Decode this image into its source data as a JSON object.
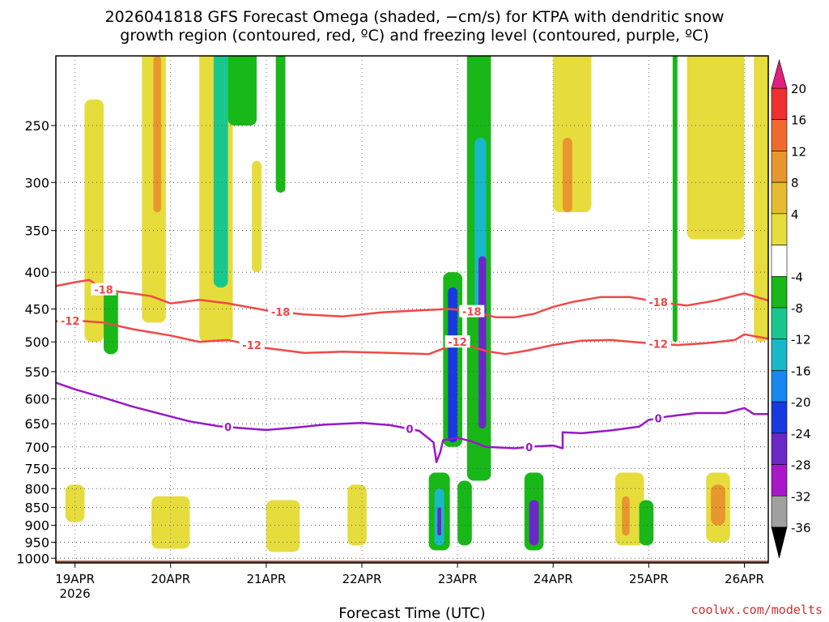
{
  "header": {
    "title_line1": "2026041818 GFS Forecast Omega (shaded, −cm/s) for KTPA with dendritic snow",
    "title_line2": "growth region (contoured, red, ºC) and freezing level (contoured, purple, ºC)"
  },
  "credit": "coolwx.com/modelts",
  "chart_data": {
    "type": "heatmap",
    "title": "2026041818 GFS Forecast Omega (shaded, −cm/s) for KTPA with dendritic snow growth region (contoured, red, ºC) and freezing level (contoured, purple, ºC)",
    "xlabel": "Forecast Time (UTC)",
    "ylabel": "",
    "x_range_days_since_19APR_00Z": [
      -0.2,
      7.25
    ],
    "y_range_hpa": [
      1015,
      200
    ],
    "x_ticks": [
      {
        "day": 0,
        "label": "19APR"
      },
      {
        "day": 1,
        "label": "20APR"
      },
      {
        "day": 2,
        "label": "21APR"
      },
      {
        "day": 3,
        "label": "22APR"
      },
      {
        "day": 4,
        "label": "23APR"
      },
      {
        "day": 5,
        "label": "24APR"
      },
      {
        "day": 6,
        "label": "25APR"
      },
      {
        "day": 7,
        "label": "26APR"
      }
    ],
    "x_year_label": "2026",
    "y_ticks": [
      250,
      300,
      350,
      400,
      450,
      500,
      550,
      600,
      650,
      700,
      750,
      800,
      850,
      900,
      950,
      1000
    ],
    "colorbar": {
      "labels": [
        "20",
        "16",
        "12",
        "8",
        "4",
        "-4",
        "-8",
        "-12",
        "-16",
        "-20",
        "-24",
        "-28",
        "-32",
        "-36"
      ],
      "colors": [
        "#f03030",
        "#f06a30",
        "#e8962e",
        "#e6bb30",
        "#e6dc3c",
        "#ffffff",
        "#18b818",
        "#18c88c",
        "#18b8c8",
        "#1888f0",
        "#1838e0",
        "#6a28c8",
        "#a818c8",
        "#a0a0a0"
      ],
      "top_arrow_color": "#e0207a",
      "bottom_arrow_color": "#000000"
    },
    "contours": [
      {
        "name": "-18",
        "color": "#f04848",
        "label": "-18",
        "points": [
          [
            -0.2,
            418
          ],
          [
            0,
            413
          ],
          [
            0.15,
            410
          ],
          [
            0.3,
            423
          ],
          [
            0.6,
            428
          ],
          [
            0.8,
            432
          ],
          [
            1.0,
            442
          ],
          [
            1.3,
            437
          ],
          [
            1.6,
            442
          ],
          [
            2.0,
            452
          ],
          [
            2.4,
            458
          ],
          [
            2.8,
            461
          ],
          [
            3.2,
            455
          ],
          [
            3.6,
            452
          ],
          [
            3.9,
            450
          ],
          [
            4.1,
            452
          ],
          [
            4.4,
            462
          ],
          [
            4.6,
            462
          ],
          [
            4.8,
            457
          ],
          [
            5.0,
            447
          ],
          [
            5.2,
            440
          ],
          [
            5.5,
            433
          ],
          [
            5.8,
            433
          ],
          [
            6.1,
            440
          ],
          [
            6.4,
            445
          ],
          [
            6.7,
            438
          ],
          [
            7.0,
            428
          ],
          [
            7.25,
            438
          ]
        ],
        "label_days": [
          0.3,
          2.15,
          4.15,
          6.1
        ]
      },
      {
        "name": "-12",
        "color": "#f04848",
        "label": "-12",
        "points": [
          [
            -0.2,
            468
          ],
          [
            0,
            467
          ],
          [
            0.3,
            470
          ],
          [
            0.6,
            480
          ],
          [
            1.0,
            490
          ],
          [
            1.3,
            500
          ],
          [
            1.6,
            497
          ],
          [
            2.0,
            510
          ],
          [
            2.4,
            518
          ],
          [
            2.8,
            516
          ],
          [
            3.3,
            518
          ],
          [
            3.7,
            520
          ],
          [
            3.9,
            508
          ],
          [
            4.0,
            500
          ],
          [
            4.1,
            505
          ],
          [
            4.3,
            515
          ],
          [
            4.5,
            520
          ],
          [
            4.7,
            515
          ],
          [
            5.0,
            505
          ],
          [
            5.3,
            498
          ],
          [
            5.6,
            497
          ],
          [
            6.0,
            502
          ],
          [
            6.3,
            505
          ],
          [
            6.6,
            502
          ],
          [
            6.9,
            497
          ],
          [
            7.0,
            488
          ],
          [
            7.25,
            495
          ]
        ],
        "label_days": [
          -0.05,
          1.85,
          4.0,
          6.1
        ]
      },
      {
        "name": "0",
        "color": "#9818c8",
        "label": "0",
        "points": [
          [
            -0.2,
            570
          ],
          [
            0,
            582
          ],
          [
            0.3,
            598
          ],
          [
            0.6,
            615
          ],
          [
            0.9,
            630
          ],
          [
            1.2,
            645
          ],
          [
            1.5,
            655
          ],
          [
            1.8,
            660
          ],
          [
            2.0,
            663
          ],
          [
            2.3,
            658
          ],
          [
            2.6,
            652
          ],
          [
            3.0,
            648
          ],
          [
            3.3,
            653
          ],
          [
            3.6,
            665
          ],
          [
            3.75,
            690
          ],
          [
            3.78,
            735
          ],
          [
            3.82,
            712
          ],
          [
            3.85,
            685
          ],
          [
            4.0,
            680
          ],
          [
            4.15,
            688
          ],
          [
            4.3,
            700
          ],
          [
            4.6,
            703
          ],
          [
            4.8,
            699
          ],
          [
            5.0,
            697
          ],
          [
            5.1,
            703
          ],
          [
            5.1,
            668
          ],
          [
            5.3,
            670
          ],
          [
            5.6,
            664
          ],
          [
            5.9,
            656
          ],
          [
            6.0,
            642
          ],
          [
            6.2,
            635
          ],
          [
            6.5,
            628
          ],
          [
            6.8,
            628
          ],
          [
            7.0,
            618
          ],
          [
            7.1,
            630
          ],
          [
            7.25,
            630
          ]
        ],
        "label_days": [
          1.6,
          3.5,
          4.75,
          6.1
        ]
      }
    ],
    "omega_shading_blocks": [
      {
        "day": [
          0.1,
          0.3
        ],
        "p": [
          230,
          500
        ],
        "value": 4
      },
      {
        "day": [
          0.3,
          0.45
        ],
        "p": [
          420,
          520
        ],
        "value": -8
      },
      {
        "day": [
          0.7,
          0.95
        ],
        "p": [
          180,
          470
        ],
        "value": 4
      },
      {
        "day": [
          0.82,
          0.9
        ],
        "p": [
          200,
          330
        ],
        "value": 12
      },
      {
        "day": [
          1.3,
          1.65
        ],
        "p": [
          190,
          500
        ],
        "value": 4
      },
      {
        "day": [
          1.45,
          1.6
        ],
        "p": [
          190,
          420
        ],
        "value": -12
      },
      {
        "day": [
          1.6,
          1.9
        ],
        "p": [
          190,
          250
        ],
        "value": -8
      },
      {
        "day": [
          2.1,
          2.2
        ],
        "p": [
          190,
          310
        ],
        "value": -8
      },
      {
        "day": [
          4.1,
          4.35
        ],
        "p": [
          190,
          780
        ],
        "value": -8
      },
      {
        "day": [
          4.18,
          4.3
        ],
        "p": [
          260,
          460
        ],
        "value": -16
      },
      {
        "day": [
          3.85,
          4.05
        ],
        "p": [
          400,
          700
        ],
        "value": -8
      },
      {
        "day": [
          3.9,
          4.0
        ],
        "p": [
          420,
          690
        ],
        "value": -24
      },
      {
        "day": [
          4.22,
          4.3
        ],
        "p": [
          380,
          660
        ],
        "value": -28
      },
      {
        "day": [
          5.0,
          5.4
        ],
        "p": [
          190,
          330
        ],
        "value": 4
      },
      {
        "day": [
          5.1,
          5.2
        ],
        "p": [
          260,
          330
        ],
        "value": 12
      },
      {
        "day": [
          6.4,
          7.0
        ],
        "p": [
          190,
          360
        ],
        "value": 4
      },
      {
        "day": [
          7.1,
          7.25
        ],
        "p": [
          190,
          500
        ],
        "value": 4
      },
      {
        "day": [
          0.8,
          1.2
        ],
        "p": [
          820,
          970
        ],
        "value": 4
      },
      {
        "day": [
          2.0,
          2.35
        ],
        "p": [
          830,
          980
        ],
        "value": 4
      },
      {
        "day": [
          2.85,
          3.05
        ],
        "p": [
          790,
          960
        ],
        "value": 4
      },
      {
        "day": [
          3.7,
          3.92
        ],
        "p": [
          760,
          975
        ],
        "value": -8
      },
      {
        "day": [
          3.76,
          3.86
        ],
        "p": [
          800,
          960
        ],
        "value": -16
      },
      {
        "day": [
          3.79,
          3.83
        ],
        "p": [
          850,
          930
        ],
        "value": -28
      },
      {
        "day": [
          4.0,
          4.15
        ],
        "p": [
          780,
          960
        ],
        "value": -8
      },
      {
        "day": [
          4.7,
          4.9
        ],
        "p": [
          760,
          975
        ],
        "value": -8
      },
      {
        "day": [
          4.75,
          4.85
        ],
        "p": [
          830,
          960
        ],
        "value": -28
      },
      {
        "day": [
          5.65,
          5.95
        ],
        "p": [
          760,
          960
        ],
        "value": 4
      },
      {
        "day": [
          5.72,
          5.8
        ],
        "p": [
          820,
          930
        ],
        "value": 12
      },
      {
        "day": [
          5.9,
          6.05
        ],
        "p": [
          830,
          960
        ],
        "value": -8
      },
      {
        "day": [
          6.6,
          6.85
        ],
        "p": [
          760,
          950
        ],
        "value": 4
      },
      {
        "day": [
          6.65,
          6.8
        ],
        "p": [
          790,
          900
        ],
        "value": 12
      },
      {
        "day": [
          -0.1,
          0.1
        ],
        "p": [
          790,
          890
        ],
        "value": 4
      },
      {
        "day": [
          6.25,
          6.3
        ],
        "p": [
          180,
          500
        ],
        "value": -8
      },
      {
        "day": [
          1.85,
          1.95
        ],
        "p": [
          280,
          400
        ],
        "value": 4
      }
    ]
  },
  "icons": {
    "colorbar_top_arrow": "triangle-up",
    "colorbar_bottom_arrow": "triangle-down"
  }
}
